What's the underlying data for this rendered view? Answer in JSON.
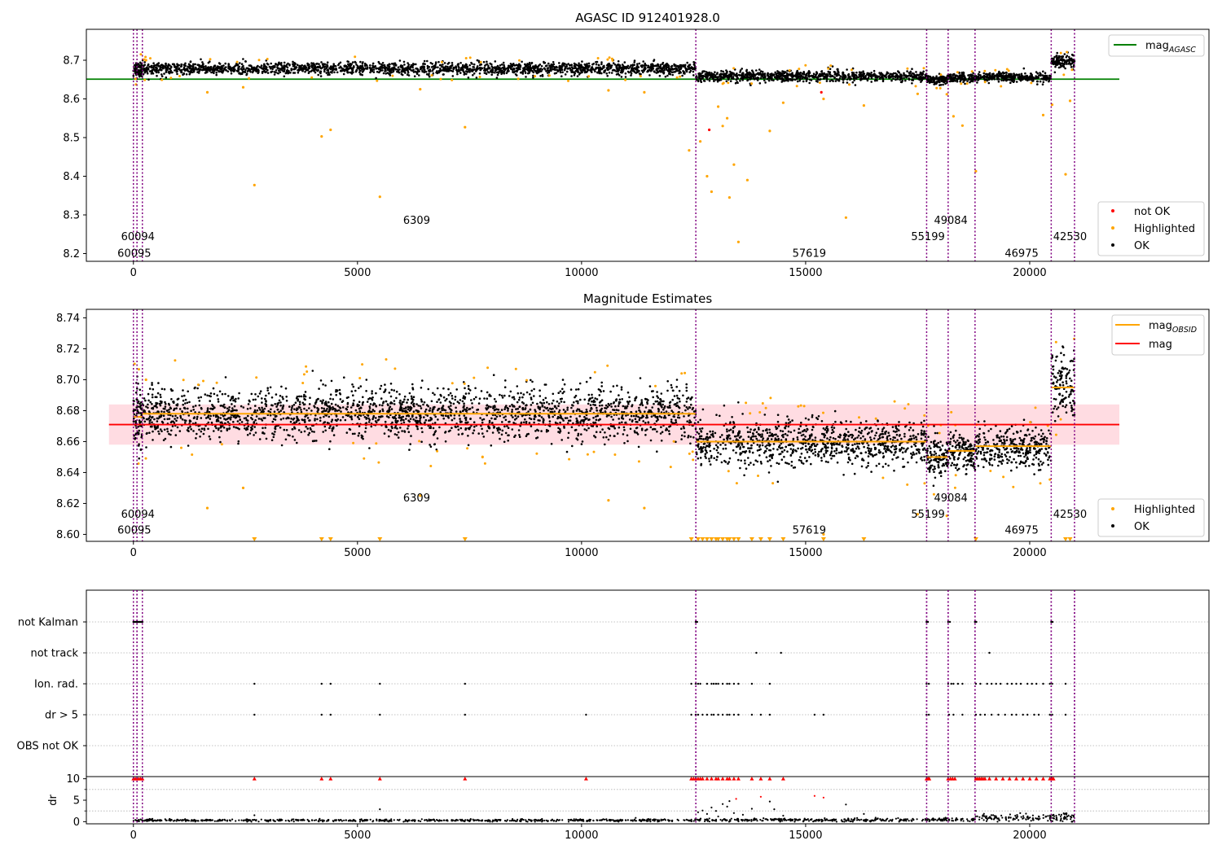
{
  "chart_data": [
    {
      "panel": "top",
      "type": "scatter",
      "title": "AGASC ID 912401928.0",
      "xlim": [
        -1050,
        24000
      ],
      "ylim": [
        8.18,
        8.78
      ],
      "xticks": [
        "0",
        "5000",
        "10000",
        "15000",
        "20000"
      ],
      "xtick_values": [
        0,
        5000,
        10000,
        15000,
        20000
      ],
      "yticks": [
        "8.2",
        "8.3",
        "8.4",
        "8.5",
        "8.6",
        "8.7"
      ],
      "ytick_values": [
        8.2,
        8.3,
        8.4,
        8.5,
        8.6,
        8.7
      ],
      "agasc_mag": 8.651,
      "legend_line": {
        "label": "mag",
        "subscript": "AGASC",
        "color": "#008000"
      },
      "legend_points": [
        {
          "label": "not OK",
          "color": "#ff0000"
        },
        {
          "label": "Highlighted",
          "color": "#ffa500"
        },
        {
          "label": "OK",
          "color": "#000000"
        }
      ],
      "segments": [
        {
          "x0": 0,
          "x1": 200,
          "level": 8.676,
          "spread": 0.01
        },
        {
          "x0": 200,
          "x1": 12550,
          "level": 8.678,
          "spread": 0.008
        },
        {
          "x0": 12550,
          "x1": 17700,
          "level": 8.659,
          "spread": 0.007
        },
        {
          "x0": 17700,
          "x1": 18180,
          "level": 8.65,
          "spread": 0.006
        },
        {
          "x0": 18180,
          "x1": 18780,
          "level": 8.654,
          "spread": 0.006
        },
        {
          "x0": 18780,
          "x1": 20480,
          "level": 8.656,
          "spread": 0.006
        },
        {
          "x0": 20480,
          "x1": 21000,
          "level": 8.697,
          "spread": 0.009
        }
      ],
      "highlighted_outliers": [
        [
          280,
          8.7
        ],
        [
          1650,
          8.617
        ],
        [
          2450,
          8.63
        ],
        [
          2700,
          8.377
        ],
        [
          4200,
          8.503
        ],
        [
          4400,
          8.52
        ],
        [
          5500,
          8.347
        ],
        [
          6400,
          8.625
        ],
        [
          7400,
          8.527
        ],
        [
          10600,
          8.622
        ],
        [
          11400,
          8.617
        ],
        [
          12400,
          8.467
        ],
        [
          12650,
          8.49
        ],
        [
          12800,
          8.4
        ],
        [
          12900,
          8.36
        ],
        [
          13050,
          8.58
        ],
        [
          13150,
          8.53
        ],
        [
          13250,
          8.55
        ],
        [
          13300,
          8.345
        ],
        [
          13400,
          8.43
        ],
        [
          13500,
          8.23
        ],
        [
          13700,
          8.39
        ],
        [
          14200,
          8.517
        ],
        [
          14500,
          8.59
        ],
        [
          15400,
          8.6
        ],
        [
          15900,
          8.293
        ],
        [
          16300,
          8.583
        ],
        [
          17500,
          8.613
        ],
        [
          18150,
          8.612
        ],
        [
          18300,
          8.555
        ],
        [
          18500,
          8.531
        ],
        [
          18800,
          8.413
        ],
        [
          20300,
          8.558
        ],
        [
          20500,
          8.585
        ],
        [
          20800,
          8.405
        ],
        [
          20900,
          8.595
        ]
      ],
      "notok_points": [
        [
          12850,
          8.52
        ],
        [
          15350,
          8.617
        ]
      ],
      "obsid_labels": [
        {
          "text": "60094",
          "x": 100,
          "y": 8.243
        },
        {
          "text": "60095",
          "x": 20,
          "y": 8.2
        },
        {
          "text": "6309",
          "x": 6320,
          "y": 8.285
        },
        {
          "text": "57619",
          "x": 15080,
          "y": 8.2
        },
        {
          "text": "55199",
          "x": 17730,
          "y": 8.243
        },
        {
          "text": "49084",
          "x": 18240,
          "y": 8.285
        },
        {
          "text": "46975",
          "x": 19820,
          "y": 8.2
        },
        {
          "text": "42530",
          "x": 20900,
          "y": 8.243
        }
      ]
    },
    {
      "panel": "middle",
      "type": "scatter",
      "title": "Magnitude Estimates",
      "xlim": [
        -1050,
        24000
      ],
      "ylim": [
        8.5955,
        8.7455
      ],
      "xticks": [
        "0",
        "5000",
        "10000",
        "15000",
        "20000"
      ],
      "xtick_values": [
        0,
        5000,
        10000,
        15000,
        20000
      ],
      "yticks": [
        "8.60",
        "8.62",
        "8.64",
        "8.66",
        "8.68",
        "8.70",
        "8.72",
        "8.74"
      ],
      "ytick_values": [
        8.6,
        8.62,
        8.64,
        8.66,
        8.68,
        8.7,
        8.72,
        8.74
      ],
      "mag": 8.671,
      "mag_band": [
        8.658,
        8.684
      ],
      "legend_lines": [
        {
          "label": "mag",
          "subscript": "OBSID",
          "color": "#ffa500"
        },
        {
          "label": "mag",
          "subscript": "",
          "color": "#ff0000"
        }
      ],
      "legend_points": [
        {
          "label": "Highlighted",
          "color": "#ffa500"
        },
        {
          "label": "OK",
          "color": "#000000"
        }
      ],
      "obsid_mags": [
        {
          "x0": 0,
          "x1": 200,
          "mag": 8.676
        },
        {
          "x0": 200,
          "x1": 12550,
          "mag": 8.678
        },
        {
          "x0": 12550,
          "x1": 17700,
          "mag": 8.66
        },
        {
          "x0": 17700,
          "x1": 18180,
          "mag": 8.65
        },
        {
          "x0": 18180,
          "x1": 18780,
          "mag": 8.654
        },
        {
          "x0": 18780,
          "x1": 20480,
          "mag": 8.657
        },
        {
          "x0": 20480,
          "x1": 21000,
          "mag": 8.695
        }
      ],
      "clipped_markers_x": [
        2700,
        4200,
        4400,
        5500,
        7400,
        12450,
        12600,
        12700,
        12800,
        12900,
        13000,
        13050,
        13150,
        13250,
        13300,
        13400,
        13500,
        13800,
        14000,
        14200,
        14500,
        15400,
        16300,
        18800,
        20800,
        20900
      ],
      "obsid_labels": [
        {
          "text": "60094",
          "x": 100,
          "y": 8.613
        },
        {
          "text": "60095",
          "x": 20,
          "y": 8.6025
        },
        {
          "text": "6309",
          "x": 6320,
          "y": 8.6235
        },
        {
          "text": "57619",
          "x": 15080,
          "y": 8.6025
        },
        {
          "text": "55199",
          "x": 17730,
          "y": 8.613
        },
        {
          "text": "49084",
          "x": 18240,
          "y": 8.6235
        },
        {
          "text": "46975",
          "x": 19820,
          "y": 8.6025
        },
        {
          "text": "42530",
          "x": 20900,
          "y": 8.613
        }
      ]
    },
    {
      "panel": "flags",
      "type": "scatter",
      "xlim": [
        -1050,
        24000
      ],
      "categories": [
        "not Kalman",
        "not track",
        "Ion. rad.",
        "dr > 5",
        "OBS not OK"
      ],
      "flag_points": {
        "not Kalman": [
          0,
          20,
          40,
          60,
          80,
          100,
          120,
          140,
          160,
          180,
          200,
          12550,
          12580,
          17700,
          17730,
          18180,
          18220,
          18780,
          18810,
          20480,
          20510
        ],
        "not track": [
          13900,
          14450,
          19100
        ],
        "Ion. rad.": [
          2700,
          4200,
          4400,
          5500,
          7400,
          12450,
          12550,
          12600,
          12650,
          12800,
          12900,
          12950,
          13000,
          13050,
          13150,
          13250,
          13300,
          13400,
          13500,
          13800,
          14200,
          17700,
          17750,
          18180,
          18250,
          18300,
          18400,
          18500,
          18800,
          18900,
          19050,
          19150,
          19250,
          19350,
          19500,
          19600,
          19700,
          19800,
          19950,
          20050,
          20150,
          20300,
          20450,
          20500,
          20800
        ],
        "dr > 5": [
          2700,
          4200,
          4400,
          5500,
          7400,
          10100,
          12450,
          12550,
          12600,
          12700,
          12800,
          12900,
          12950,
          13050,
          13150,
          13250,
          13300,
          13400,
          13500,
          13800,
          14000,
          14200,
          15200,
          15400,
          17700,
          17750,
          18200,
          18300,
          18500,
          18800,
          18900,
          19000,
          19150,
          19300,
          19450,
          19600,
          19700,
          19850,
          19950,
          20100,
          20200,
          20450,
          20500,
          20800
        ],
        "OBS not OK": []
      }
    },
    {
      "panel": "dr",
      "type": "scatter",
      "ylabel": "dr",
      "xlim": [
        -1050,
        24000
      ],
      "ylim": [
        -0.5,
        10.5
      ],
      "yticks": [
        "0",
        "5",
        "10"
      ],
      "ytick_values": [
        0,
        5,
        10
      ],
      "xticks": [
        "0",
        "5000",
        "10000",
        "15000",
        "20000"
      ],
      "xtick_values": [
        0,
        5000,
        10000,
        15000,
        20000
      ],
      "red_at_cap_x": [
        0,
        40,
        80,
        120,
        160,
        200,
        2700,
        4200,
        4400,
        5500,
        7400,
        10100,
        12450,
        12500,
        12550,
        12600,
        12650,
        12700,
        12800,
        12900,
        13000,
        13050,
        13150,
        13250,
        13300,
        13400,
        13500,
        13800,
        14000,
        14200,
        14500,
        17700,
        17730,
        17760,
        18180,
        18230,
        18280,
        18330,
        18800,
        18840,
        18880,
        18920,
        18960,
        19000,
        19100,
        19250,
        19400,
        19550,
        19700,
        19850,
        20000,
        20150,
        20300,
        20450,
        20500,
        20530
      ],
      "scattered_dr": [
        [
          2700,
          1.5
        ],
        [
          5500,
          2.9
        ],
        [
          12600,
          2.2
        ],
        [
          12700,
          2.6
        ],
        [
          12800,
          1.8
        ],
        [
          12900,
          3.3
        ],
        [
          13000,
          2.5
        ],
        [
          13050,
          1.2
        ],
        [
          13150,
          4.1
        ],
        [
          13250,
          3.5
        ],
        [
          13300,
          4.8
        ],
        [
          13400,
          2.0
        ],
        [
          13450,
          5.3
        ],
        [
          13600,
          1.6
        ],
        [
          13800,
          3.0
        ],
        [
          14000,
          5.8
        ],
        [
          14200,
          4.7
        ],
        [
          14300,
          2.9
        ],
        [
          14500,
          1.4
        ],
        [
          15200,
          6.0
        ],
        [
          15400,
          5.6
        ],
        [
          15900,
          4.0
        ],
        [
          16300,
          1.8
        ],
        [
          18800,
          2.5
        ],
        [
          20800,
          1.9
        ]
      ],
      "dr_levels": [
        {
          "x0": 0,
          "x1": 12550,
          "level": 0.3
        },
        {
          "x0": 12550,
          "x1": 17700,
          "level": 0.4
        },
        {
          "x0": 17700,
          "x1": 18780,
          "level": 0.5
        },
        {
          "x0": 18780,
          "x1": 20480,
          "level": 0.9
        },
        {
          "x0": 20480,
          "x1": 21000,
          "level": 1.2
        }
      ]
    }
  ],
  "obsid_boundaries_x": [
    0,
    80,
    200,
    12550,
    17700,
    18180,
    18780,
    20480,
    21000
  ]
}
